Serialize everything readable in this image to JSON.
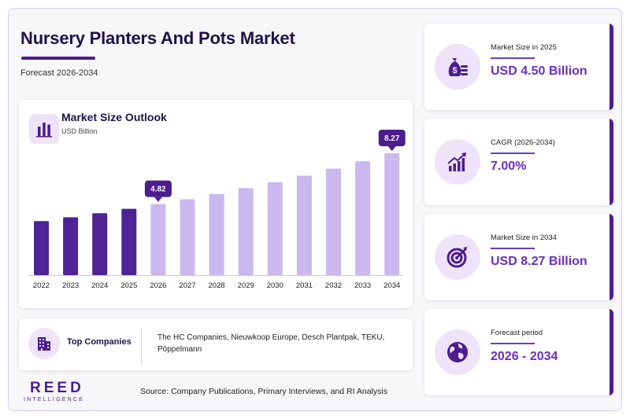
{
  "header": {
    "title": "Nursery Planters And Pots Market",
    "subtitle": "Forecast 2026-2034"
  },
  "chart_card": {
    "title": "Market Size Outlook",
    "unit": "USD Billion",
    "icon": "bar-chart-icon"
  },
  "chart_data": {
    "type": "bar",
    "title": "Market Size Outlook",
    "ylabel": "USD Billion",
    "categories": [
      "2022",
      "2023",
      "2024",
      "2025",
      "2026",
      "2027",
      "2028",
      "2029",
      "2030",
      "2031",
      "2032",
      "2033",
      "2034"
    ],
    "values": [
      3.67,
      3.93,
      4.2,
      4.5,
      4.82,
      5.15,
      5.51,
      5.9,
      6.31,
      6.75,
      7.23,
      7.73,
      8.27
    ],
    "highlight_labels": {
      "2026": "4.82",
      "2034": "8.27"
    },
    "historical_years": [
      "2022",
      "2023",
      "2024",
      "2025"
    ],
    "ylim": [
      0,
      8.27
    ],
    "grid": false,
    "colors": {
      "historical": "#4f2296",
      "forecast": "#cbb8ef",
      "callout": "#4b1d8f"
    }
  },
  "companies": {
    "label": "Top Companies",
    "list": "The HC Companies, Nieuwkoop Europe, Desch Plantpak, TEKU, Pöppelmann",
    "icon": "building-icon"
  },
  "stats": [
    {
      "label": "Market Size in 2025",
      "value": "USD 4.50 Billion",
      "icon": "money-bag-icon"
    },
    {
      "label": "CAGR (2026-2034)",
      "value": "7.00%",
      "icon": "growth-chart-icon"
    },
    {
      "label": "Market Size in 2034",
      "value": "USD 8.27 Billion",
      "icon": "target-icon"
    },
    {
      "label": "Forecast period",
      "value": "2026 - 2034",
      "icon": "globe-icon"
    }
  ],
  "footer": {
    "logo_main": "REED",
    "logo_sub": "INTELLIGENCE",
    "source": "Source: Company Publications, Primary Interviews, and RI Analysis"
  },
  "colors": {
    "brand": "#4b1d8f",
    "accent": "#6a2fc4",
    "icon_bg": "#efe3fa"
  }
}
